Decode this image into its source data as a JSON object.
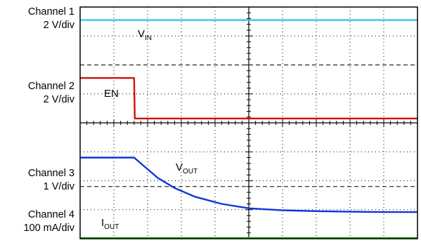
{
  "channels": [
    {
      "name": "Channel 1",
      "scale": "2 V/div"
    },
    {
      "name": "Channel 2",
      "scale": "2 V/div"
    },
    {
      "name": "Channel 3",
      "scale": "1 V/div"
    },
    {
      "name": "Channel 4",
      "scale": "100 mA/div"
    }
  ],
  "chart_data": {
    "type": "line",
    "grid": true,
    "divisions": {
      "x": 10,
      "y": 8
    },
    "x_range_div": [
      0,
      10
    ],
    "y_range_div": [
      0,
      8
    ],
    "series": [
      {
        "name": "VIN",
        "base": "V",
        "sub": "IN",
        "color": "#39c6e6",
        "x": [
          0,
          10
        ],
        "y": [
          7.55,
          7.55
        ]
      },
      {
        "name": "EN",
        "base": "EN",
        "sub": "",
        "color": "#cc1111",
        "x": [
          0,
          1.6,
          1.62,
          1.75,
          10
        ],
        "y": [
          5.55,
          5.55,
          4.15,
          4.15,
          4.15
        ]
      },
      {
        "name": "VOUT",
        "base": "V",
        "sub": "OUT",
        "color": "#1133dd",
        "x": [
          0,
          1.6,
          1.9,
          2.3,
          2.8,
          3.4,
          4.2,
          5.0,
          6.0,
          7.0,
          8.0,
          9.0,
          10
        ],
        "y": [
          2.8,
          2.8,
          2.5,
          2.1,
          1.75,
          1.45,
          1.2,
          1.05,
          0.98,
          0.95,
          0.93,
          0.92,
          0.92
        ]
      },
      {
        "name": "IOUT",
        "base": "I",
        "sub": "OUT",
        "color": "#22aa22",
        "x": [
          0,
          10
        ],
        "y": [
          0.02,
          0.02
        ]
      }
    ]
  }
}
